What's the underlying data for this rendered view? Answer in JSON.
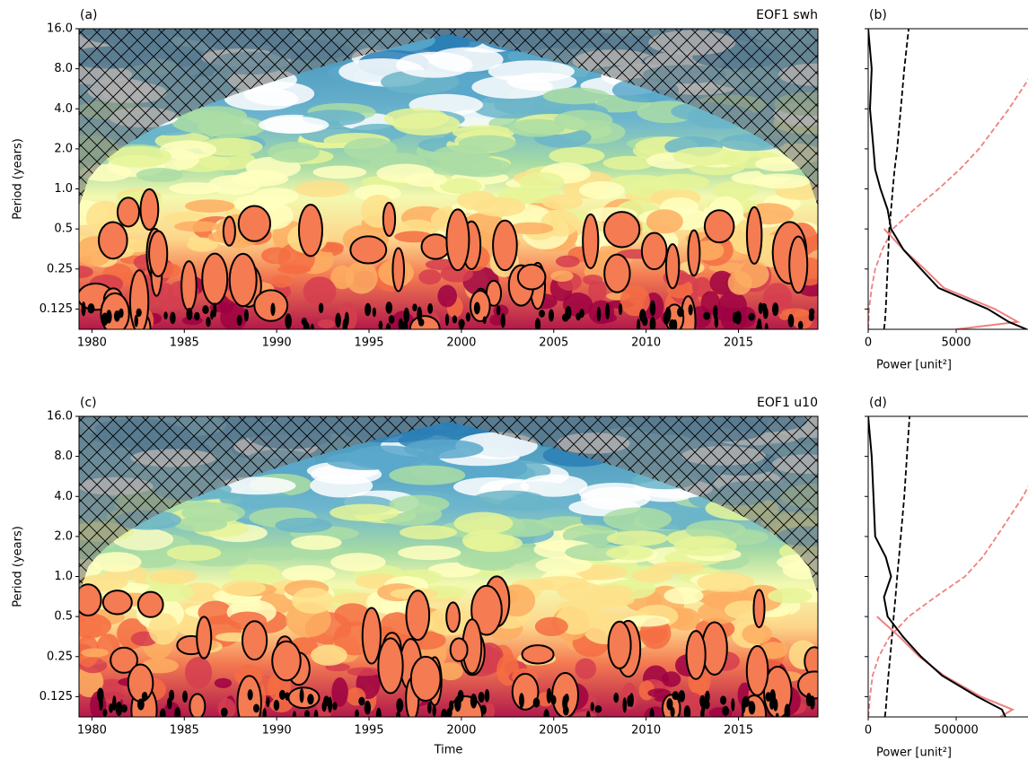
{
  "chart_data": [
    {
      "type": "contour",
      "panel_label": "(a)",
      "title": "EOF1 swh",
      "ylabel": "Period (years)",
      "log_y": true,
      "xlim": [
        1979.3,
        2019.3
      ],
      "xticks": [
        1980,
        1985,
        1990,
        1995,
        2000,
        2005,
        2010,
        2015
      ],
      "ylim": [
        0.088,
        16
      ],
      "yticks": [
        {
          "value": 16,
          "label": "16.0"
        },
        {
          "value": 8,
          "label": "8.0"
        },
        {
          "value": 4,
          "label": "4.0"
        },
        {
          "value": 2,
          "label": "2.0"
        },
        {
          "value": 1,
          "label": "1.0"
        },
        0.5,
        0.25,
        0.125
      ]
    },
    {
      "type": "line",
      "panel_label": "(b)",
      "xlabel": "Power [unit²]",
      "log_y": true,
      "xlim": [
        0,
        10100
      ],
      "xticks": [
        0,
        5000
      ],
      "ylim": [
        0.088,
        16
      ],
      "yticks": [
        16,
        8,
        4,
        2,
        1,
        0.5,
        0.25,
        0.125
      ],
      "y": [
        0.088,
        0.1,
        0.125,
        0.18,
        0.25,
        0.35,
        0.5,
        0.7,
        1.0,
        1.4,
        2.0,
        4.0,
        8.0,
        16.0
      ],
      "series": [
        {
          "color": "#f08080",
          "dashed": true,
          "values": [
            0,
            20,
            50,
            200,
            400,
            800,
            1400,
            2600,
            4000,
            5200,
            6300,
            8000,
            9500,
            10500
          ]
        },
        {
          "color": "#000000",
          "dashed": true,
          "values": [
            900,
            950,
            1000,
            1050,
            1100,
            1150,
            1200,
            1300,
            1400,
            1500,
            1650,
            1850,
            2050,
            2300
          ]
        },
        {
          "color": "#f08080",
          "dashed": false,
          "values": [
            5000,
            8500,
            7200,
            4300,
            3200,
            2000,
            900,
            null,
            null,
            null,
            null,
            null,
            null,
            null
          ]
        },
        {
          "color": "#000000",
          "dashed": false,
          "values": [
            9000,
            8000,
            6800,
            4000,
            3000,
            2000,
            1300,
            1100,
            700,
            400,
            300,
            100,
            200,
            0
          ]
        }
      ]
    },
    {
      "type": "contour",
      "panel_label": "(c)",
      "title": "EOF1 u10",
      "ylabel": "Period (years)",
      "xlabel": "Time",
      "log_y": true,
      "xlim": [
        1979.3,
        2019.3
      ],
      "xticks": [
        1980,
        1985,
        1990,
        1995,
        2000,
        2005,
        2010,
        2015
      ],
      "ylim": [
        0.088,
        16
      ],
      "yticks": [
        {
          "value": 16,
          "label": "16.0"
        },
        {
          "value": 8,
          "label": "8.0"
        },
        {
          "value": 4,
          "label": "4.0"
        },
        {
          "value": 2,
          "label": "2.0"
        },
        {
          "value": 1,
          "label": "1.0"
        },
        0.5,
        0.25,
        0.125
      ]
    },
    {
      "type": "line",
      "panel_label": "(d)",
      "xlabel": "Power [unit²]",
      "log_y": true,
      "xlim": [
        0,
        1010000
      ],
      "xticks": [
        0,
        500000
      ],
      "ylim": [
        0.088,
        16
      ],
      "yticks": [
        16,
        8,
        4,
        2,
        1,
        0.5,
        0.25,
        0.125
      ],
      "y": [
        0.088,
        0.1,
        0.125,
        0.18,
        0.25,
        0.35,
        0.5,
        0.7,
        1.0,
        1.4,
        2.0,
        4.0,
        8.0,
        16.0
      ],
      "series": [
        {
          "color": "#f08080",
          "dashed": true,
          "values": [
            0,
            5000,
            10000,
            25000,
            60000,
            120000,
            230000,
            380000,
            550000,
            650000,
            730000,
            880000,
            1000000,
            1100000
          ]
        },
        {
          "color": "#000000",
          "dashed": true,
          "values": [
            95000,
            100000,
            105000,
            115000,
            125000,
            135000,
            145000,
            155000,
            165000,
            175000,
            185000,
            205000,
            220000,
            235000
          ]
        },
        {
          "color": "#f08080",
          "dashed": false,
          "values": [
            750000,
            820000,
            640000,
            430000,
            290000,
            180000,
            50000,
            null,
            null,
            null,
            null,
            null,
            null,
            null
          ]
        },
        {
          "color": "#000000",
          "dashed": false,
          "values": [
            780000,
            760000,
            620000,
            420000,
            300000,
            200000,
            110000,
            90000,
            130000,
            100000,
            40000,
            30000,
            20000,
            0
          ]
        }
      ]
    }
  ]
}
